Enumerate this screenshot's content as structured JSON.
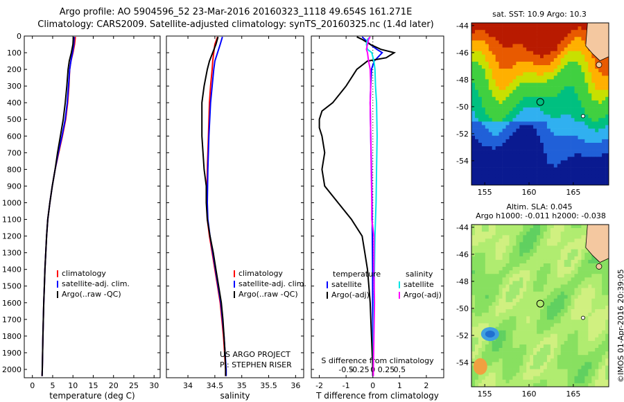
{
  "title_line1": "Argo profile: AO 5904596_52 23-Mar-2016 20160323_1118 49.654S 161.271E",
  "title_line2": "Climatology: CARS2009. Satellite-adjusted climatology: synTS_20160325.nc (1.4d later)",
  "depth_ticks": [
    "0",
    "100",
    "200",
    "300",
    "400",
    "500",
    "600",
    "700",
    "800",
    "900",
    "1000",
    "1100",
    "1200",
    "1300",
    "1400",
    "1500",
    "1600",
    "1700",
    "1800",
    "1900",
    "2000"
  ],
  "colors": {
    "climatology": "#ff0000",
    "satellite": "#0000ff",
    "argo": "#000000",
    "sal_sat": "#00e5e5",
    "sal_argo": "#ff00ff"
  },
  "chart_data": [
    {
      "type": "line",
      "xlabel": "temperature (deg C)",
      "ylabel": "",
      "xlim": [
        -2,
        31.5
      ],
      "ylim": [
        2050,
        0
      ],
      "xticks": [
        "0",
        "5",
        "10",
        "15",
        "20",
        "25",
        "30"
      ],
      "xtick_values": [
        0,
        5,
        10,
        15,
        20,
        25,
        30
      ],
      "legend": [
        "climatology",
        "satellite-adj. clim.",
        "Argo(..raw -QC)"
      ],
      "series": [
        {
          "name": "climatology",
          "color": "#ff0000",
          "depth": [
            5,
            50,
            100,
            150,
            200,
            300,
            400,
            500,
            600,
            700,
            800,
            900,
            1000,
            1100,
            1200,
            1300,
            1400,
            1500,
            1600,
            1800,
            2000,
            2040
          ],
          "values": [
            10.6,
            10.4,
            10.0,
            9.5,
            9.2,
            9.0,
            8.7,
            8.2,
            7.4,
            6.5,
            5.6,
            4.9,
            4.3,
            3.8,
            3.5,
            3.3,
            3.1,
            2.95,
            2.8,
            2.6,
            2.45,
            2.4
          ]
        },
        {
          "name": "satellite-adj. clim.",
          "color": "#0000ff",
          "depth": [
            5,
            50,
            100,
            150,
            200,
            300,
            400,
            500,
            600,
            700,
            800,
            900,
            1000,
            1100,
            1200,
            1300,
            1400,
            1500,
            1600,
            1800,
            2000,
            2040
          ],
          "values": [
            10.3,
            10.2,
            9.9,
            9.5,
            9.2,
            8.9,
            8.6,
            8.1,
            7.3,
            6.4,
            5.6,
            4.9,
            4.3,
            3.8,
            3.5,
            3.3,
            3.1,
            2.95,
            2.8,
            2.6,
            2.45,
            2.4
          ]
        },
        {
          "name": "Argo(..raw -QC)",
          "color": "#000000",
          "depth": [
            5,
            50,
            100,
            150,
            200,
            300,
            400,
            500,
            600,
            700,
            800,
            900,
            1000,
            1100,
            1200,
            1300,
            1400,
            1500,
            1600,
            1800,
            2000,
            2040
          ],
          "values": [
            10.1,
            10.0,
            9.6,
            9.1,
            8.8,
            8.5,
            8.1,
            7.6,
            6.9,
            6.2,
            5.6,
            4.9,
            4.3,
            3.8,
            3.5,
            3.3,
            3.1,
            2.95,
            2.8,
            2.6,
            2.45,
            2.4
          ]
        }
      ]
    },
    {
      "type": "line",
      "xlabel": "salinity",
      "ylabel": "",
      "xlim": [
        33.6,
        36.15
      ],
      "ylim": [
        2050,
        0
      ],
      "xticks": [
        "34",
        "34.5",
        "35",
        "35.5",
        "36"
      ],
      "xtick_values": [
        34,
        34.5,
        35,
        35.5,
        36
      ],
      "legend": [
        "climatology",
        "satellite-adj. clim.",
        "Argo(..raw -QC)"
      ],
      "annotation": [
        "US ARGO PROJECT",
        "PI: STEPHEN RISER"
      ],
      "series": [
        {
          "name": "climatology",
          "color": "#ff0000",
          "depth": [
            5,
            50,
            100,
            150,
            200,
            300,
            400,
            600,
            800,
            1000,
            1100,
            1200,
            1300,
            1400,
            1500,
            1600,
            1700,
            1800,
            1900,
            2000,
            2040
          ],
          "values": [
            34.55,
            34.5,
            34.48,
            34.46,
            34.45,
            34.42,
            34.4,
            34.38,
            34.36,
            34.35,
            34.36,
            34.4,
            34.45,
            34.5,
            34.55,
            34.6,
            34.63,
            34.66,
            34.68,
            34.7,
            34.7
          ]
        },
        {
          "name": "satellite-adj. clim.",
          "color": "#0000ff",
          "depth": [
            5,
            50,
            100,
            150,
            200,
            300,
            400,
            600,
            800,
            1000,
            1100,
            1200,
            1300,
            1400,
            1500,
            1600,
            1700,
            1800,
            1900,
            2000,
            2040
          ],
          "values": [
            34.64,
            34.6,
            34.55,
            34.5,
            34.48,
            34.45,
            34.42,
            34.39,
            34.37,
            34.36,
            34.37,
            34.41,
            34.46,
            34.51,
            34.56,
            34.61,
            34.64,
            34.67,
            34.69,
            34.71,
            34.71
          ]
        },
        {
          "name": "Argo(..raw -QC)",
          "color": "#000000",
          "depth": [
            5,
            50,
            100,
            150,
            200,
            300,
            400,
            600,
            800,
            900,
            1000,
            1100,
            1200,
            1300,
            1400,
            1500,
            1600,
            1700,
            1800,
            1900,
            2000,
            2040
          ],
          "values": [
            34.56,
            34.52,
            34.46,
            34.4,
            34.36,
            34.3,
            34.26,
            34.26,
            34.3,
            34.34,
            34.34,
            34.36,
            34.41,
            34.47,
            34.52,
            34.57,
            34.62,
            34.65,
            34.67,
            34.69,
            34.7,
            34.7
          ]
        }
      ]
    },
    {
      "type": "line",
      "xlabel": "T difference from climatology",
      "xlabel2": "S difference from climatology",
      "xlim": [
        -2.3,
        2.65
      ],
      "ylim": [
        2050,
        0
      ],
      "xticks": [
        "-2",
        "-1",
        "0",
        "1",
        "2"
      ],
      "xtick_values": [
        -2,
        -1,
        0,
        1,
        2
      ],
      "sticks": [
        "-0.5",
        "-0.25",
        "0",
        "0.25",
        "0.5"
      ],
      "stick_values": [
        -0.5,
        -0.25,
        0,
        0.25,
        0.5
      ],
      "legend_t": [
        "temperature",
        "satellite",
        "Argo(-adj)"
      ],
      "legend_s": [
        "salinity",
        "satellite",
        "Argo(-adj)"
      ],
      "series": [
        {
          "name": "satellite",
          "color": "#0000ff",
          "depth": [
            5,
            20,
            50,
            80,
            100,
            150,
            200,
            300,
            400,
            600,
            800,
            1000,
            1200,
            1400,
            1600,
            1800,
            2000,
            2040
          ],
          "values": [
            -0.4,
            -0.3,
            -0.1,
            0.15,
            0.35,
            0.05,
            -0.05,
            -0.08,
            -0.1,
            -0.08,
            -0.05,
            -0.03,
            -0.02,
            -0.01,
            -0.01,
            0.0,
            0.0,
            0.0
          ]
        },
        {
          "name": "Argo(-adj)",
          "color": "#000000",
          "depth": [
            5,
            20,
            50,
            80,
            100,
            130,
            150,
            200,
            300,
            400,
            450,
            500,
            550,
            600,
            700,
            800,
            900,
            1000,
            1100,
            1200,
            1300,
            1400,
            1500,
            1600,
            1800,
            2000,
            2040
          ],
          "values": [
            -0.6,
            -0.4,
            -0.1,
            0.3,
            0.8,
            0.5,
            -0.2,
            -0.6,
            -1.0,
            -1.5,
            -1.9,
            -2.0,
            -2.0,
            -1.9,
            -1.8,
            -1.9,
            -1.8,
            -1.3,
            -0.8,
            -0.4,
            -0.3,
            -0.2,
            -0.15,
            -0.1,
            -0.05,
            0.0,
            0.0
          ]
        },
        {
          "name": "satellite (salinity)",
          "color": "#00e5e5",
          "depth": [
            5,
            20,
            50,
            80,
            100,
            150,
            200,
            300,
            400,
            600,
            800,
            1000,
            1200,
            1400,
            1600,
            1800,
            2000,
            2040
          ],
          "values": [
            -0.05,
            -0.1,
            -0.12,
            -0.1,
            -0.02,
            0.02,
            0.04,
            0.05,
            0.07,
            0.08,
            0.07,
            0.06,
            0.04,
            0.03,
            0.02,
            0.01,
            0.01,
            0.01
          ]
        },
        {
          "name": "Argo(-adj) (salinity)",
          "color": "#ff00ff",
          "depth": [
            5,
            20,
            50,
            80,
            100,
            150,
            200,
            300,
            400,
            600,
            800,
            1000,
            1100,
            1200,
            1400,
            1600,
            1800,
            2000,
            2040
          ],
          "values": [
            -0.05,
            -0.08,
            -0.1,
            -0.12,
            -0.1,
            -0.08,
            -0.05,
            -0.04,
            -0.05,
            -0.04,
            -0.03,
            -0.02,
            -0.02,
            0.02,
            0.02,
            0.03,
            0.02,
            0.01,
            0.01
          ]
        }
      ]
    }
  ],
  "sst_map": {
    "title": "sat. SST: 10.9 Argo: 10.3",
    "yticks": [
      "-44",
      "-46",
      "-48",
      "-50",
      "-52",
      "-54"
    ],
    "xticks": [
      "155",
      "160",
      "165"
    ],
    "lon_range": [
      153.5,
      169
    ],
    "lat_range": [
      -55.8,
      -43.8
    ],
    "argo_marker": [
      161.27,
      -49.65
    ]
  },
  "sla_map": {
    "title1": "Altim. SLA: 0.045",
    "title2": "Argo h1000: -0.011 h2000: -0.038",
    "yticks": [
      "-44",
      "-46",
      "-48",
      "-50",
      "-52",
      "-54"
    ],
    "xticks": [
      "155",
      "160",
      "165"
    ],
    "lon_range": [
      153.5,
      169
    ],
    "lat_range": [
      -55.8,
      -43.8
    ],
    "argo_marker": [
      161.27,
      -49.65
    ],
    "side_label": "©IMOS 01-Apr-2016 20:39:05"
  }
}
